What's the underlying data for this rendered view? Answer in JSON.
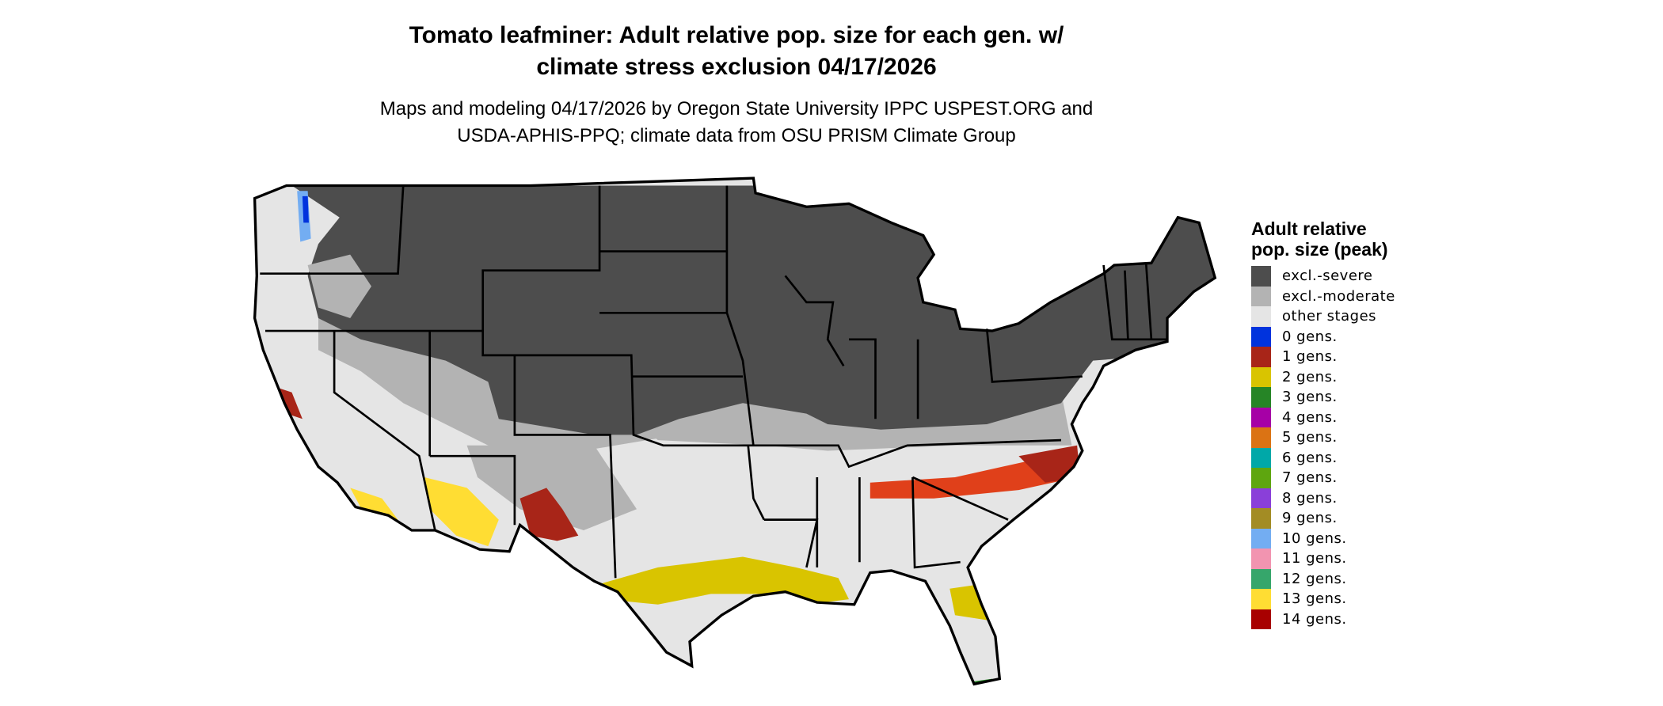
{
  "title": {
    "line1": "Tomato leafminer: Adult relative pop. size for each gen. w/",
    "line2": "climate stress exclusion 04/17/2026"
  },
  "subtitle": {
    "line1": "Maps and modeling 04/17/2026 by Oregon State University IPPC USPEST.ORG and",
    "line2": "USDA-APHIS-PPQ; climate data from OSU PRISM Climate Group"
  },
  "legend": {
    "title": "Adult relative pop. size (peak)",
    "items": [
      {
        "label": "excl.-severe",
        "color": "#4d4d4d"
      },
      {
        "label": "excl.-moderate",
        "color": "#b3b3b3"
      },
      {
        "label": "other stages",
        "color": "#e5e5e5"
      },
      {
        "label": "0 gens.",
        "color": "#0033dd"
      },
      {
        "label": "1 gens.",
        "color": "#a82518"
      },
      {
        "label": "2 gens.",
        "color": "#d9c400"
      },
      {
        "label": "3 gens.",
        "color": "#268526"
      },
      {
        "label": "4 gens.",
        "color": "#a600a6"
      },
      {
        "label": "5 gens.",
        "color": "#db7314"
      },
      {
        "label": "6 gens.",
        "color": "#00a8a8"
      },
      {
        "label": "7 gens.",
        "color": "#5ea60f"
      },
      {
        "label": "8 gens.",
        "color": "#8a3fd9"
      },
      {
        "label": "9 gens.",
        "color": "#a38c24"
      },
      {
        "label": "10 gens.",
        "color": "#73adf2"
      },
      {
        "label": "11 gens.",
        "color": "#f294b0"
      },
      {
        "label": "12 gens.",
        "color": "#36a66b"
      },
      {
        "label": "13 gens.",
        "color": "#ffdd33"
      },
      {
        "label": "14 gens.",
        "color": "#a80000"
      }
    ]
  }
}
